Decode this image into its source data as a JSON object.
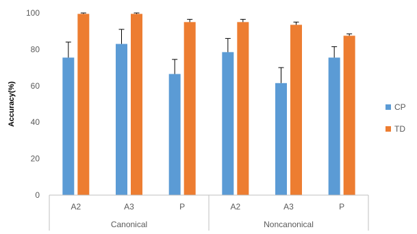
{
  "chart_data": {
    "type": "bar",
    "title": "",
    "xlabel": "",
    "ylabel": "Accuracy(%)",
    "ylim": [
      0,
      100
    ],
    "yticks": [
      0,
      20,
      40,
      60,
      80,
      100
    ],
    "grid": false,
    "legend_position": "right",
    "groups": [
      {
        "label": "Canonical",
        "categories": [
          "A2",
          "A3",
          "P"
        ]
      },
      {
        "label": "Noncanonical",
        "categories": [
          "A2",
          "A3",
          "P"
        ]
      }
    ],
    "series": [
      {
        "name": "CP",
        "color": "#5B9BD5",
        "values": [
          75.5,
          83.0,
          66.5,
          78.5,
          61.5,
          75.5
        ],
        "errors": [
          8.5,
          8.0,
          8.0,
          7.5,
          8.5,
          6.0
        ]
      },
      {
        "name": "TD",
        "color": "#ED7D31",
        "values": [
          99.5,
          99.5,
          95.0,
          95.0,
          93.5,
          87.5
        ],
        "errors": [
          0.5,
          0.5,
          1.5,
          1.5,
          1.5,
          1.0
        ]
      }
    ]
  }
}
